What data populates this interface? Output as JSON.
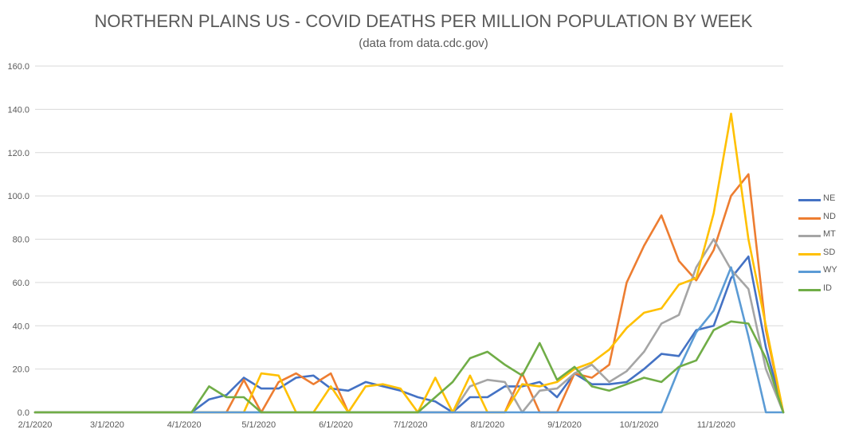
{
  "chart_data": {
    "type": "line",
    "title": "NORTHERN PLAINS US - COVID DEATHS PER MILLION POPULATION BY WEEK",
    "subtitle": "(data from data.cdc.gov)",
    "xlabel": "",
    "ylabel": "",
    "ylim": [
      0,
      160
    ],
    "yticks": [
      "0.0",
      "20.0",
      "40.0",
      "60.0",
      "80.0",
      "100.0",
      "120.0",
      "140.0",
      "160.0"
    ],
    "x_tick_labels": [
      "2/1/2020",
      "3/1/2020",
      "4/1/2020",
      "5/1/2020",
      "6/1/2020",
      "7/1/2020",
      "8/1/2020",
      "9/1/2020",
      "10/1/2020",
      "11/1/2020"
    ],
    "x_tick_weeks": [
      0,
      4.143,
      8.571,
      12.857,
      17.286,
      21.571,
      26,
      30.429,
      34.714,
      39.143
    ],
    "x_max_week": 43,
    "grid": true,
    "legend_position": "right",
    "series": [
      {
        "name": "NE",
        "color": "#4472C4",
        "values": [
          0,
          0,
          0,
          0,
          0,
          0,
          0,
          0,
          0,
          0,
          6,
          8,
          16,
          11,
          11,
          16,
          17,
          11,
          10,
          14,
          12,
          10,
          7,
          5,
          0,
          7,
          7,
          12,
          12,
          14,
          7,
          18,
          13,
          13,
          14,
          20,
          27,
          26,
          38,
          40,
          62,
          72,
          30,
          0
        ]
      },
      {
        "name": "ND",
        "color": "#ED7D31",
        "values": [
          0,
          0,
          0,
          0,
          0,
          0,
          0,
          0,
          0,
          0,
          0,
          0,
          15,
          0,
          14,
          18,
          13,
          18,
          0,
          0,
          0,
          0,
          0,
          0,
          0,
          0,
          0,
          0,
          18,
          0,
          0,
          18,
          16,
          22,
          60,
          77,
          91,
          70,
          61,
          75,
          100,
          110,
          38,
          0
        ]
      },
      {
        "name": "MT",
        "color": "#A5A5A5",
        "values": [
          0,
          0,
          0,
          0,
          0,
          0,
          0,
          0,
          0,
          0,
          0,
          0,
          0,
          0,
          0,
          0,
          0,
          0,
          0,
          0,
          0,
          0,
          0,
          0,
          0,
          12,
          15,
          14,
          0,
          10,
          11,
          18,
          22,
          14,
          19,
          28,
          41,
          45,
          67,
          80,
          66,
          57,
          20,
          0
        ]
      },
      {
        "name": "SD",
        "color": "#FFC000",
        "values": [
          0,
          0,
          0,
          0,
          0,
          0,
          0,
          0,
          0,
          0,
          0,
          0,
          0,
          18,
          17,
          0,
          0,
          12,
          0,
          12,
          13,
          11,
          0,
          16,
          0,
          17,
          0,
          0,
          13,
          12,
          14,
          20,
          23,
          29,
          39,
          46,
          48,
          59,
          62,
          92,
          138,
          80,
          40,
          0
        ]
      },
      {
        "name": "WY",
        "color": "#5B9BD5",
        "values": [
          0,
          0,
          0,
          0,
          0,
          0,
          0,
          0,
          0,
          0,
          0,
          0,
          0,
          0,
          0,
          0,
          0,
          0,
          0,
          0,
          0,
          0,
          0,
          0,
          0,
          0,
          0,
          0,
          0,
          0,
          0,
          0,
          0,
          0,
          0,
          0,
          0,
          20,
          37,
          47,
          67,
          35,
          0,
          0
        ]
      },
      {
        "name": "ID",
        "color": "#70AD47",
        "values": [
          0,
          0,
          0,
          0,
          0,
          0,
          0,
          0,
          0,
          0,
          12,
          7,
          7,
          0,
          0,
          0,
          0,
          0,
          0,
          0,
          0,
          0,
          0,
          7,
          14,
          25,
          28,
          22,
          17,
          32,
          15,
          21,
          12,
          10,
          13,
          16,
          14,
          21,
          24,
          38,
          42,
          41,
          25,
          0
        ]
      }
    ]
  }
}
